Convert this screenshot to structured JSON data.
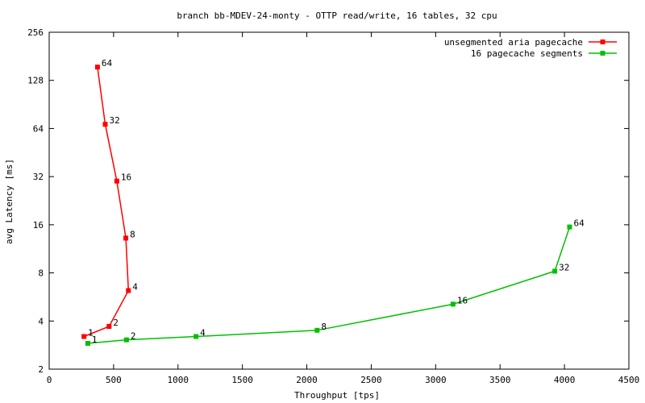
{
  "chart_data": {
    "type": "line",
    "title": "branch bb-MDEV-24-monty - OTTP read/write, 16 tables, 32 cpu",
    "xlabel": "Throughput [tps]",
    "ylabel": "avg Latency [ms]",
    "xlim": [
      0,
      4500
    ],
    "ylim": [
      2,
      256
    ],
    "yscale": "log2",
    "xticks": [
      0,
      500,
      1000,
      1500,
      2000,
      2500,
      3000,
      3500,
      4000,
      4500
    ],
    "yticks": [
      2,
      4,
      8,
      16,
      32,
      64,
      128,
      256
    ],
    "legend_position": "top-right",
    "series": [
      {
        "name": "unsegmented aria pagecache",
        "color": "#ff0000",
        "points": [
          {
            "x": 270,
            "y": 3.2,
            "label": "1"
          },
          {
            "x": 465,
            "y": 3.7,
            "label": "2"
          },
          {
            "x": 615,
            "y": 6.2,
            "label": "4"
          },
          {
            "x": 595,
            "y": 13.2,
            "label": "8"
          },
          {
            "x": 525,
            "y": 30,
            "label": "16"
          },
          {
            "x": 435,
            "y": 68,
            "label": "32"
          },
          {
            "x": 375,
            "y": 155,
            "label": "64"
          }
        ]
      },
      {
        "name": "16 pagecache segments",
        "color": "#00c000",
        "points": [
          {
            "x": 300,
            "y": 2.9,
            "label": "1"
          },
          {
            "x": 600,
            "y": 3.05,
            "label": "2"
          },
          {
            "x": 1140,
            "y": 3.2,
            "label": "4"
          },
          {
            "x": 2080,
            "y": 3.5,
            "label": "8"
          },
          {
            "x": 3135,
            "y": 5.1,
            "label": "16"
          },
          {
            "x": 3925,
            "y": 8.2,
            "label": "32"
          },
          {
            "x": 4040,
            "y": 15.5,
            "label": "64"
          }
        ]
      }
    ]
  }
}
